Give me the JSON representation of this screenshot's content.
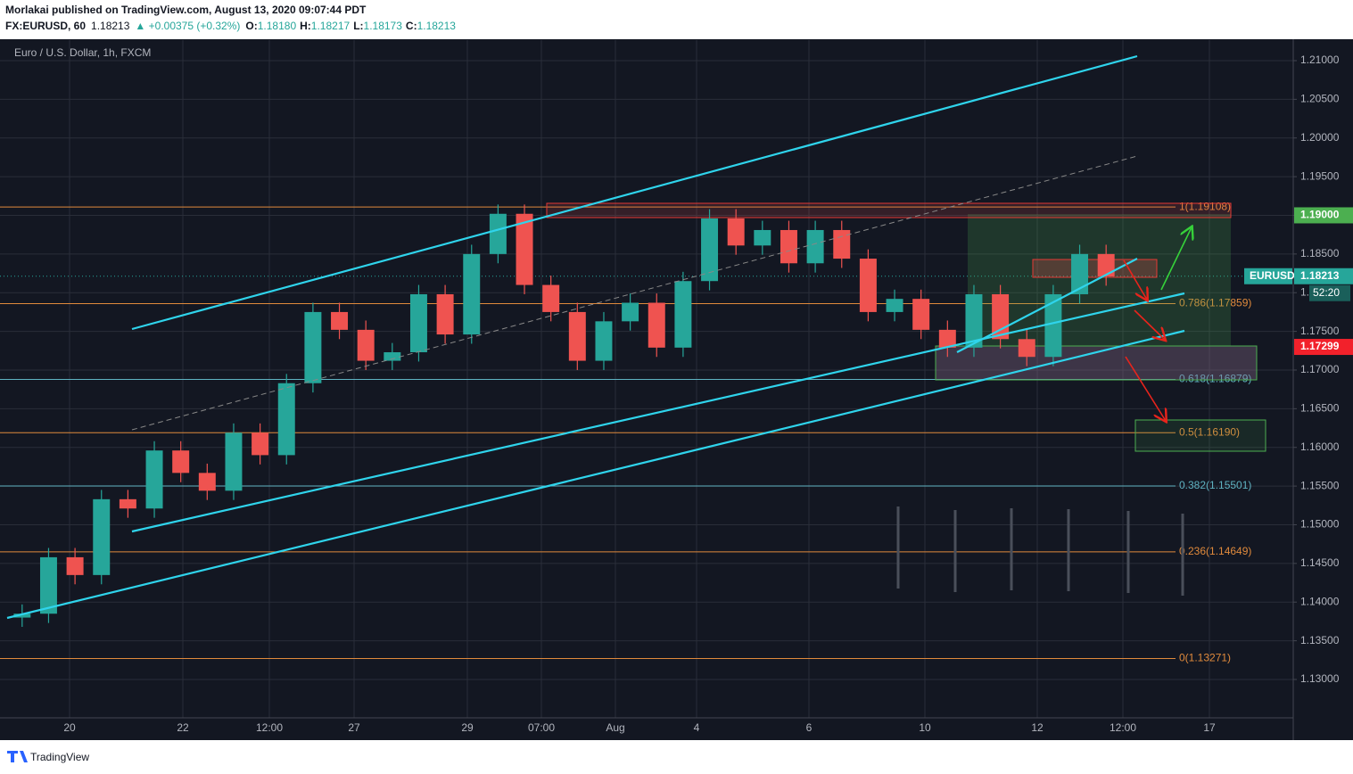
{
  "header": {
    "publisher": "Morlakai published on TradingView.com, August 13, 2020 09:07:44 PDT",
    "symbol": "FX:EURUSD, 60",
    "last": "1.18213",
    "change": "▲ +0.00375 (+0.32%)",
    "open_label": "O:",
    "open": "1.18180",
    "high_label": "H:",
    "high": "1.18217",
    "low_label": "L:",
    "low": "1.18173",
    "close_label": "C:",
    "close": "1.18213"
  },
  "chart_data": {
    "type": "candlestick",
    "title": "Euro / U.S. Dollar, 1h, FXCM",
    "up_color": "#26a69a",
    "down_color": "#ef5350",
    "open": [
      1.138,
      1.1385,
      1.1458,
      1.1435,
      1.1533,
      1.1521,
      1.1596,
      1.1567,
      1.1544,
      1.1619,
      1.159,
      1.1683,
      1.1775,
      1.1752,
      1.1712,
      1.1723,
      1.1798,
      1.1746,
      1.185,
      1.1902,
      1.181,
      1.1775,
      1.1712,
      1.1763,
      1.1787,
      1.1729,
      1.1815,
      1.1896,
      1.1861,
      1.1881,
      1.1838,
      1.1881,
      1.1844,
      1.1775,
      1.1792,
      1.1752,
      1.1729,
      1.1798,
      1.174,
      1.1717,
      1.1798,
      1.185
    ],
    "high": [
      1.1397,
      1.147,
      1.147,
      1.1545,
      1.1545,
      1.1608,
      1.1608,
      1.1579,
      1.1631,
      1.1631,
      1.1695,
      1.1787,
      1.1787,
      1.1764,
      1.1735,
      1.181,
      1.181,
      1.1862,
      1.1914,
      1.1914,
      1.1822,
      1.1787,
      1.1775,
      1.1799,
      1.1799,
      1.1827,
      1.1908,
      1.1908,
      1.1893,
      1.1893,
      1.1893,
      1.1893,
      1.1856,
      1.1804,
      1.1804,
      1.1764,
      1.181,
      1.181,
      1.1752,
      1.181,
      1.1862,
      1.1862
    ],
    "low": [
      1.1368,
      1.1373,
      1.1423,
      1.1423,
      1.1509,
      1.1509,
      1.1555,
      1.1532,
      1.1532,
      1.1578,
      1.1578,
      1.1671,
      1.174,
      1.17,
      1.17,
      1.1711,
      1.1734,
      1.1734,
      1.1838,
      1.1798,
      1.1763,
      1.17,
      1.17,
      1.1751,
      1.1717,
      1.1717,
      1.1803,
      1.1849,
      1.1849,
      1.1826,
      1.1826,
      1.1832,
      1.1763,
      1.1763,
      1.174,
      1.1717,
      1.1717,
      1.1728,
      1.1705,
      1.1705,
      1.1786,
      1.1809
    ],
    "close": [
      1.1385,
      1.1458,
      1.1435,
      1.1533,
      1.1521,
      1.1596,
      1.1567,
      1.1544,
      1.1619,
      1.159,
      1.1683,
      1.1775,
      1.1752,
      1.1712,
      1.1723,
      1.1798,
      1.1746,
      1.185,
      1.1902,
      1.181,
      1.1775,
      1.1712,
      1.1763,
      1.1787,
      1.1729,
      1.1815,
      1.1896,
      1.1861,
      1.1881,
      1.1838,
      1.1881,
      1.1844,
      1.1775,
      1.1792,
      1.1752,
      1.1729,
      1.1798,
      1.174,
      1.1717,
      1.1798,
      1.185,
      1.1821
    ],
    "xticks": [
      "20",
      "22",
      "12:00",
      "27",
      "29",
      "07:00",
      "Aug",
      "4",
      "6",
      "10",
      "12",
      "12:00",
      "17"
    ],
    "ylim": [
      1.12504,
      1.21265
    ],
    "yticks": [
      {
        "value": 1.13,
        "label": "1.13000"
      },
      {
        "value": 1.135,
        "label": "1.13500"
      },
      {
        "value": 1.14,
        "label": "1.14000"
      },
      {
        "value": 1.145,
        "label": "1.14500"
      },
      {
        "value": 1.15,
        "label": "1.15000"
      },
      {
        "value": 1.155,
        "label": "1.15500"
      },
      {
        "value": 1.16,
        "label": "1.16000"
      },
      {
        "value": 1.165,
        "label": "1.16500"
      },
      {
        "value": 1.17,
        "label": "1.17000"
      },
      {
        "value": 1.175,
        "label": "1.17500"
      },
      {
        "value": 1.18,
        "label": "1.18000"
      },
      {
        "value": 1.185,
        "label": "1.18500"
      },
      {
        "value": 1.19,
        "label": "1.19000"
      },
      {
        "value": 1.195,
        "label": "1.19500"
      },
      {
        "value": 1.2,
        "label": "1.20000"
      },
      {
        "value": 1.205,
        "label": "1.20500"
      },
      {
        "value": 1.21,
        "label": "1.21000"
      }
    ],
    "grid": true,
    "fib_levels": [
      {
        "label": "1(1.19108)",
        "value": 1.19108,
        "color": "#e08a3c"
      },
      {
        "label": "0.786(1.17859)",
        "value": 1.17859,
        "color": "#e08a3c"
      },
      {
        "label": "0.618(1.16879)",
        "value": 1.16879,
        "color": "#5fb3c2"
      },
      {
        "label": "0.5(1.16190)",
        "value": 1.1619,
        "color": "#e08a3c"
      },
      {
        "label": "0.382(1.15501)",
        "value": 1.15501,
        "color": "#5fb3c2"
      },
      {
        "label": "0.236(1.14649)",
        "value": 1.14649,
        "color": "#e08a3c"
      },
      {
        "label": "0(1.13271)",
        "value": 1.13271,
        "color": "#e08a3c"
      }
    ],
    "price_tags": [
      {
        "label": "1.19000",
        "value": 1.19,
        "color": "#4caf50"
      },
      {
        "label": "1.17299",
        "value": 1.17299,
        "color": "#f2212b"
      }
    ],
    "last_price": {
      "symbol": "EURUSD",
      "label": "1.18213",
      "value": 1.18213,
      "countdown": "52:20",
      "color": "#26a69a"
    }
  },
  "footer": {
    "brand": "TradingView"
  }
}
